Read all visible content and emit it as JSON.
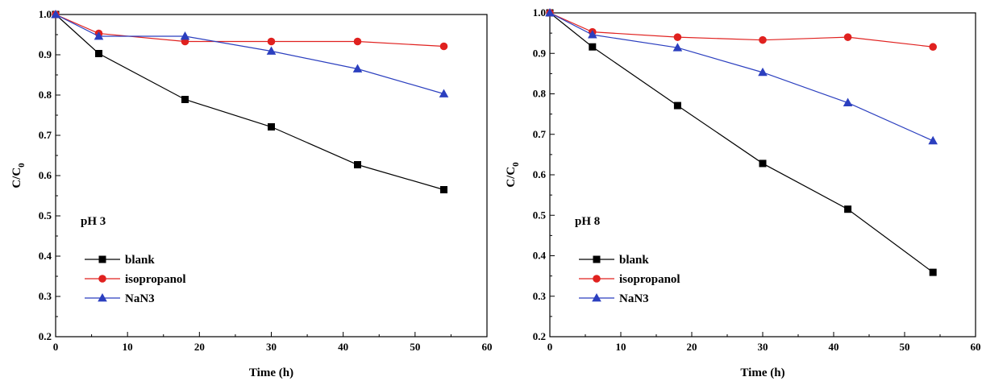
{
  "chart_data": [
    {
      "type": "line",
      "annotation": "pH 3",
      "xlabel": "Time (h)",
      "ylabel": "C/C",
      "ylabel_sub": "0",
      "xlim": [
        0,
        60
      ],
      "ylim": [
        0.2,
        1.0
      ],
      "xticks": [
        0,
        10,
        20,
        30,
        40,
        50,
        60
      ],
      "yticks": [
        0.2,
        0.3,
        0.4,
        0.5,
        0.6,
        0.7,
        0.8,
        0.9,
        1.0
      ],
      "grid": false,
      "legend_position": "lower-left",
      "series": [
        {
          "name": "blank",
          "color": "#000000",
          "marker": "square",
          "x": [
            0,
            6,
            18,
            30,
            42,
            54
          ],
          "y": [
            1.0,
            0.903,
            0.789,
            0.721,
            0.627,
            0.565
          ]
        },
        {
          "name": "isopropanol",
          "color": "#e0211f",
          "marker": "circle",
          "x": [
            0,
            6,
            18,
            30,
            42,
            54
          ],
          "y": [
            1.0,
            0.953,
            0.933,
            0.933,
            0.933,
            0.921
          ]
        },
        {
          "name": "NaN3",
          "color": "#2b3fbf",
          "marker": "triangle",
          "x": [
            0,
            6,
            18,
            30,
            42,
            54
          ],
          "y": [
            1.0,
            0.946,
            0.946,
            0.909,
            0.865,
            0.803
          ]
        }
      ]
    },
    {
      "type": "line",
      "annotation": "pH 8",
      "xlabel": "Time (h)",
      "ylabel": "C/C",
      "ylabel_sub": "0",
      "xlim": [
        0,
        60
      ],
      "ylim": [
        0.2,
        1.0
      ],
      "xticks": [
        0,
        10,
        20,
        30,
        40,
        50,
        60
      ],
      "yticks": [
        0.2,
        0.3,
        0.4,
        0.5,
        0.6,
        0.7,
        0.8,
        0.9,
        1.0
      ],
      "grid": false,
      "legend_position": "lower-left",
      "series": [
        {
          "name": "blank",
          "color": "#000000",
          "marker": "square",
          "x": [
            0,
            6,
            18,
            30,
            42,
            54
          ],
          "y": [
            1.0,
            0.916,
            0.771,
            0.628,
            0.515,
            0.359
          ]
        },
        {
          "name": "isopropanol",
          "color": "#e0211f",
          "marker": "circle",
          "x": [
            0,
            6,
            18,
            30,
            42,
            54
          ],
          "y": [
            1.0,
            0.953,
            0.94,
            0.933,
            0.94,
            0.916
          ]
        },
        {
          "name": "NaN3",
          "color": "#2b3fbf",
          "marker": "triangle",
          "x": [
            0,
            6,
            18,
            30,
            42,
            54
          ],
          "y": [
            1.0,
            0.946,
            0.914,
            0.853,
            0.778,
            0.684
          ]
        }
      ]
    }
  ]
}
